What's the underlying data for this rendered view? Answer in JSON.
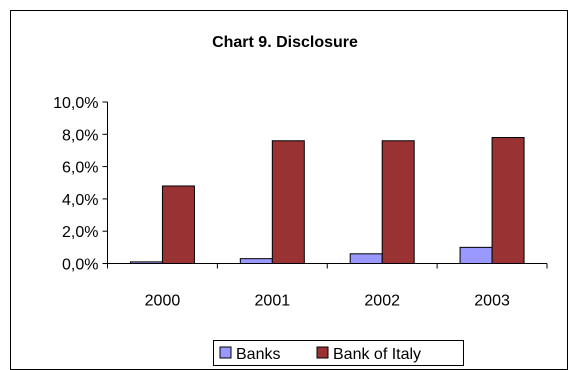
{
  "chart_data": {
    "type": "bar",
    "title": "Chart 9. Disclosure",
    "xlabel": "",
    "ylabel": "",
    "categories": [
      "2000",
      "2001",
      "2002",
      "2003"
    ],
    "series": [
      {
        "name": "Banks",
        "values": [
          0.1,
          0.3,
          0.6,
          1.0
        ],
        "color": "#9999ff"
      },
      {
        "name": "Bank of Italy",
        "values": [
          4.8,
          7.6,
          7.6,
          7.8
        ],
        "color": "#993333"
      }
    ],
    "ylim": [
      0,
      10
    ],
    "yticks": [
      0,
      2,
      4,
      6,
      8,
      10
    ],
    "ytick_labels": [
      "0,0%",
      "2,0%",
      "4,0%",
      "6,0%",
      "8,0%",
      "10,0%"
    ],
    "grid": false,
    "legend_position": "bottom"
  }
}
